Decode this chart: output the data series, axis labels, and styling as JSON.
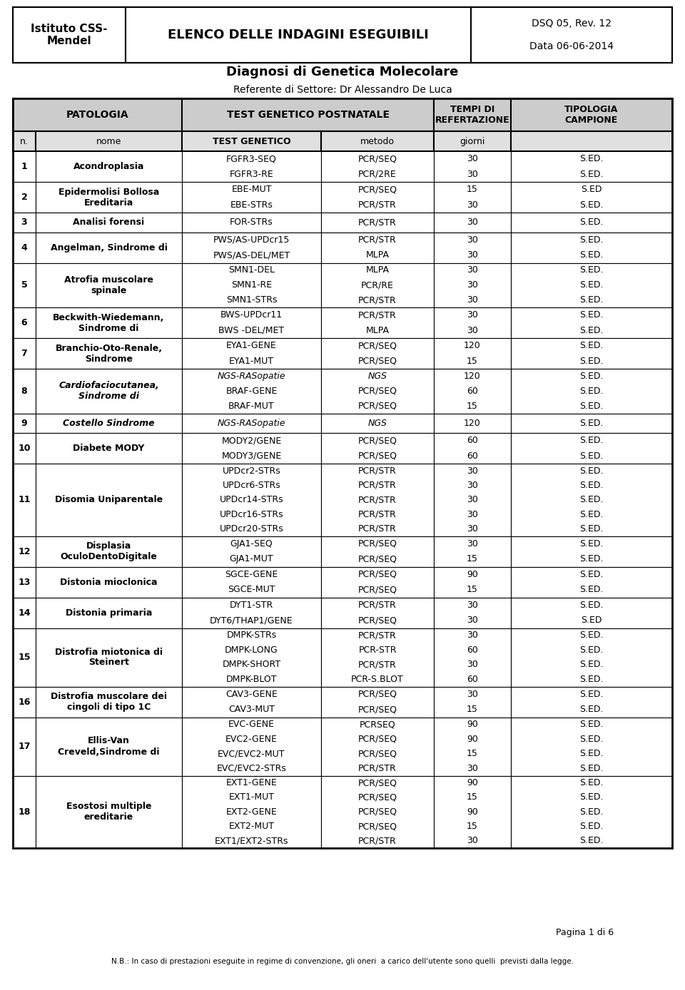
{
  "header_left": "Istituto CSS-\nMendel",
  "header_center": "ELENCO DELLE INDAGINI ESEGUIBILI",
  "header_right": "DSQ 05, Rev. 12\n\nData 06-06-2014",
  "title1": "Diagnosi di Genetica Molecolare",
  "title2": "Referente di Settore: Dr Alessandro De Luca",
  "footer_page": "Pagina 1 di 6",
  "footer_note": "N.B.: In caso di prestazioni eseguite in regime di convenzione, gli oneri  a carico dell'utente sono quelli  previsti dalla legge.",
  "bg_header_color": "#cccccc",
  "bg_subheader_color": "#e0e0e0",
  "rows": [
    {
      "n": "1",
      "patologia": "Acondroplasia",
      "bold_pat": true,
      "italic_pat": false,
      "tests": [
        {
          "gene": "FGFR3-SEQ",
          "metodo": "PCR/SEQ",
          "giorni": "30",
          "campione": "S.ED.",
          "italic": false
        },
        {
          "gene": "FGFR3-RE",
          "metodo": "PCR/2RE",
          "giorni": "30",
          "campione": "S.ED.",
          "italic": false
        }
      ]
    },
    {
      "n": "2",
      "patologia": "Epidermolisi Bollosa\nEreditaria",
      "bold_pat": true,
      "italic_pat": false,
      "tests": [
        {
          "gene": "EBE-MUT",
          "metodo": "PCR/SEQ",
          "giorni": "15",
          "campione": "S.ED",
          "italic": false
        },
        {
          "gene": "EBE-STRs",
          "metodo": "PCR/STR",
          "giorni": "30",
          "campione": "S.ED.",
          "italic": false
        }
      ]
    },
    {
      "n": "3",
      "patologia": "Analisi forensi",
      "bold_pat": true,
      "italic_pat": false,
      "tests": [
        {
          "gene": "FOR-STRs",
          "metodo": "PCR/STR",
          "giorni": "30",
          "campione": "S.ED.",
          "italic": false
        }
      ]
    },
    {
      "n": "4",
      "patologia": "Angelman, Sindrome di",
      "bold_pat": true,
      "italic_pat": false,
      "tests": [
        {
          "gene": "PWS/AS-UPDcr15",
          "metodo": "PCR/STR",
          "giorni": "30",
          "campione": "S.ED.",
          "italic": false
        },
        {
          "gene": "PWS/AS-DEL/MET",
          "metodo": "MLPA",
          "giorni": "30",
          "campione": "S.ED.",
          "italic": false
        }
      ]
    },
    {
      "n": "5",
      "patologia": "Atrofia muscolare\nspinale",
      "bold_pat": true,
      "italic_pat": false,
      "tests": [
        {
          "gene": "SMN1-DEL",
          "metodo": "MLPA",
          "giorni": "30",
          "campione": "S.ED.",
          "italic": false
        },
        {
          "gene": "SMN1-RE",
          "metodo": "PCR/RE",
          "giorni": "30",
          "campione": "S.ED.",
          "italic": false
        },
        {
          "gene": "SMN1-STRs",
          "metodo": "PCR/STR",
          "giorni": "30",
          "campione": "S.ED.",
          "italic": false
        }
      ]
    },
    {
      "n": "6",
      "patologia": "Beckwith-Wiedemann,\nSindrome di",
      "bold_pat": true,
      "italic_pat": false,
      "tests": [
        {
          "gene": "BWS-UPDcr11",
          "metodo": "PCR/STR",
          "giorni": "30",
          "campione": "S.ED.",
          "italic": false
        },
        {
          "gene": "BWS -DEL/MET",
          "metodo": "MLPA",
          "giorni": "30",
          "campione": "S.ED.",
          "italic": false
        }
      ]
    },
    {
      "n": "7",
      "patologia": "Branchio-Oto-Renale,\nSindrome",
      "bold_pat": true,
      "italic_pat": false,
      "tests": [
        {
          "gene": "EYA1-GENE",
          "metodo": "PCR/SEQ",
          "giorni": "120",
          "campione": "S.ED.",
          "italic": false
        },
        {
          "gene": "EYA1-MUT",
          "metodo": "PCR/SEQ",
          "giorni": "15",
          "campione": "S.ED.",
          "italic": false
        }
      ]
    },
    {
      "n": "8",
      "patologia": "Cardiofaciocutanea,\nSindrome di",
      "bold_pat": true,
      "italic_pat": true,
      "tests": [
        {
          "gene": "NGS-RASopatie",
          "metodo": "NGS",
          "giorni": "120",
          "campione": "S.ED.",
          "italic": true
        },
        {
          "gene": "BRAF-GENE",
          "metodo": "PCR/SEQ",
          "giorni": "60",
          "campione": "S.ED.",
          "italic": false
        },
        {
          "gene": "BRAF-MUT",
          "metodo": "PCR/SEQ",
          "giorni": "15",
          "campione": "S.ED.",
          "italic": false
        }
      ]
    },
    {
      "n": "9",
      "patologia": "Costello Sindrome",
      "bold_pat": true,
      "italic_pat": true,
      "tests": [
        {
          "gene": "NGS-RASopatie",
          "metodo": "NGS",
          "giorni": "120",
          "campione": "S.ED.",
          "italic": true
        }
      ]
    },
    {
      "n": "10",
      "patologia": "Diabete MODY",
      "bold_pat": true,
      "italic_pat": false,
      "tests": [
        {
          "gene": "MODY2/GENE",
          "metodo": "PCR/SEQ",
          "giorni": "60",
          "campione": "S.ED.",
          "italic": false
        },
        {
          "gene": "MODY3/GENE",
          "metodo": "PCR/SEQ",
          "giorni": "60",
          "campione": "S.ED.",
          "italic": false
        }
      ]
    },
    {
      "n": "11",
      "patologia": "Disomia Uniparentale",
      "bold_pat": true,
      "italic_pat": false,
      "tests": [
        {
          "gene": "UPDcr2-STRs",
          "metodo": "PCR/STR",
          "giorni": "30",
          "campione": "S.ED.",
          "italic": false
        },
        {
          "gene": "UPDcr6-STRs",
          "metodo": "PCR/STR",
          "giorni": "30",
          "campione": "S.ED.",
          "italic": false
        },
        {
          "gene": "UPDcr14-STRs",
          "metodo": "PCR/STR",
          "giorni": "30",
          "campione": "S.ED.",
          "italic": false
        },
        {
          "gene": "UPDcr16-STRs",
          "metodo": "PCR/STR",
          "giorni": "30",
          "campione": "S.ED.",
          "italic": false
        },
        {
          "gene": "UPDcr20-STRs",
          "metodo": "PCR/STR",
          "giorni": "30",
          "campione": "S.ED.",
          "italic": false
        }
      ]
    },
    {
      "n": "12",
      "patologia": "Displasia\nOculoDentoDigitale",
      "bold_pat": true,
      "italic_pat": false,
      "tests": [
        {
          "gene": "GJA1-SEQ",
          "metodo": "PCR/SEQ",
          "giorni": "30",
          "campione": "S.ED.",
          "italic": false
        },
        {
          "gene": "GJA1-MUT",
          "metodo": "PCR/SEQ",
          "giorni": "15",
          "campione": "S.ED.",
          "italic": false
        }
      ]
    },
    {
      "n": "13",
      "patologia": "Distonia mioclonica",
      "bold_pat": true,
      "italic_pat": false,
      "tests": [
        {
          "gene": "SGCE-GENE",
          "metodo": "PCR/SEQ",
          "giorni": "90",
          "campione": "S.ED.",
          "italic": false
        },
        {
          "gene": "SGCE-MUT",
          "metodo": "PCR/SEQ",
          "giorni": "15",
          "campione": "S.ED.",
          "italic": false
        }
      ]
    },
    {
      "n": "14",
      "patologia": "Distonia primaria",
      "bold_pat": true,
      "italic_pat": false,
      "tests": [
        {
          "gene": "DYT1-STR",
          "metodo": "PCR/STR",
          "giorni": "30",
          "campione": "S.ED.",
          "italic": false
        },
        {
          "gene": "DYT6/THAP1/GENE",
          "metodo": "PCR/SEQ",
          "giorni": "30",
          "campione": "S.ED",
          "italic": false
        }
      ]
    },
    {
      "n": "15",
      "patologia": "Distrofia miotonica di\nSteinert",
      "bold_pat": true,
      "italic_pat": false,
      "tests": [
        {
          "gene": "DMPK-STRs",
          "metodo": "PCR/STR",
          "giorni": "30",
          "campione": "S.ED.",
          "italic": false
        },
        {
          "gene": "DMPK-LONG",
          "metodo": "PCR-STR",
          "giorni": "60",
          "campione": "S.ED.",
          "italic": false
        },
        {
          "gene": "DMPK-SHORT",
          "metodo": "PCR/STR",
          "giorni": "30",
          "campione": "S.ED.",
          "italic": false
        },
        {
          "gene": "DMPK-BLOT",
          "metodo": "PCR-S.BLOT",
          "giorni": "60",
          "campione": "S.ED.",
          "italic": false
        }
      ]
    },
    {
      "n": "16",
      "patologia": "Distrofia muscolare dei\ncingoli di tipo 1C",
      "bold_pat": true,
      "italic_pat": false,
      "tests": [
        {
          "gene": "CAV3-GENE",
          "metodo": "PCR/SEQ",
          "giorni": "30",
          "campione": "S.ED.",
          "italic": false
        },
        {
          "gene": "CAV3-MUT",
          "metodo": "PCR/SEQ",
          "giorni": "15",
          "campione": "S.ED.",
          "italic": false
        }
      ]
    },
    {
      "n": "17",
      "patologia": "Ellis-Van\nCreveld,Sindrome di",
      "bold_pat": true,
      "italic_pat": false,
      "tests": [
        {
          "gene": "EVC-GENE",
          "metodo": "PCRSEQ",
          "giorni": "90",
          "campione": "S.ED.",
          "italic": false
        },
        {
          "gene": "EVC2-GENE",
          "metodo": "PCR/SEQ",
          "giorni": "90",
          "campione": "S.ED.",
          "italic": false
        },
        {
          "gene": "EVC/EVC2-MUT",
          "metodo": "PCR/SEQ",
          "giorni": "15",
          "campione": "S.ED.",
          "italic": false
        },
        {
          "gene": "EVC/EVC2-STRs",
          "metodo": "PCR/STR",
          "giorni": "30",
          "campione": "S.ED.",
          "italic": false
        }
      ]
    },
    {
      "n": "18",
      "patologia": "Esostosi multiple\nereditarie",
      "bold_pat": true,
      "italic_pat": false,
      "tests": [
        {
          "gene": "EXT1-GENE",
          "metodo": "PCR/SEQ",
          "giorni": "90",
          "campione": "S.ED.",
          "italic": false
        },
        {
          "gene": "EXT1-MUT",
          "metodo": "PCR/SEQ",
          "giorni": "15",
          "campione": "S.ED.",
          "italic": false
        },
        {
          "gene": "EXT2-GENE",
          "metodo": "PCR/SEQ",
          "giorni": "90",
          "campione": "S.ED.",
          "italic": false
        },
        {
          "gene": "EXT2-MUT",
          "metodo": "PCR/SEQ",
          "giorni": "15",
          "campione": "S.ED.",
          "italic": false
        },
        {
          "gene": "EXT1/EXT2-STRs",
          "metodo": "PCR/STR",
          "giorni": "30",
          "campione": "S.ED.",
          "italic": false
        }
      ]
    }
  ]
}
